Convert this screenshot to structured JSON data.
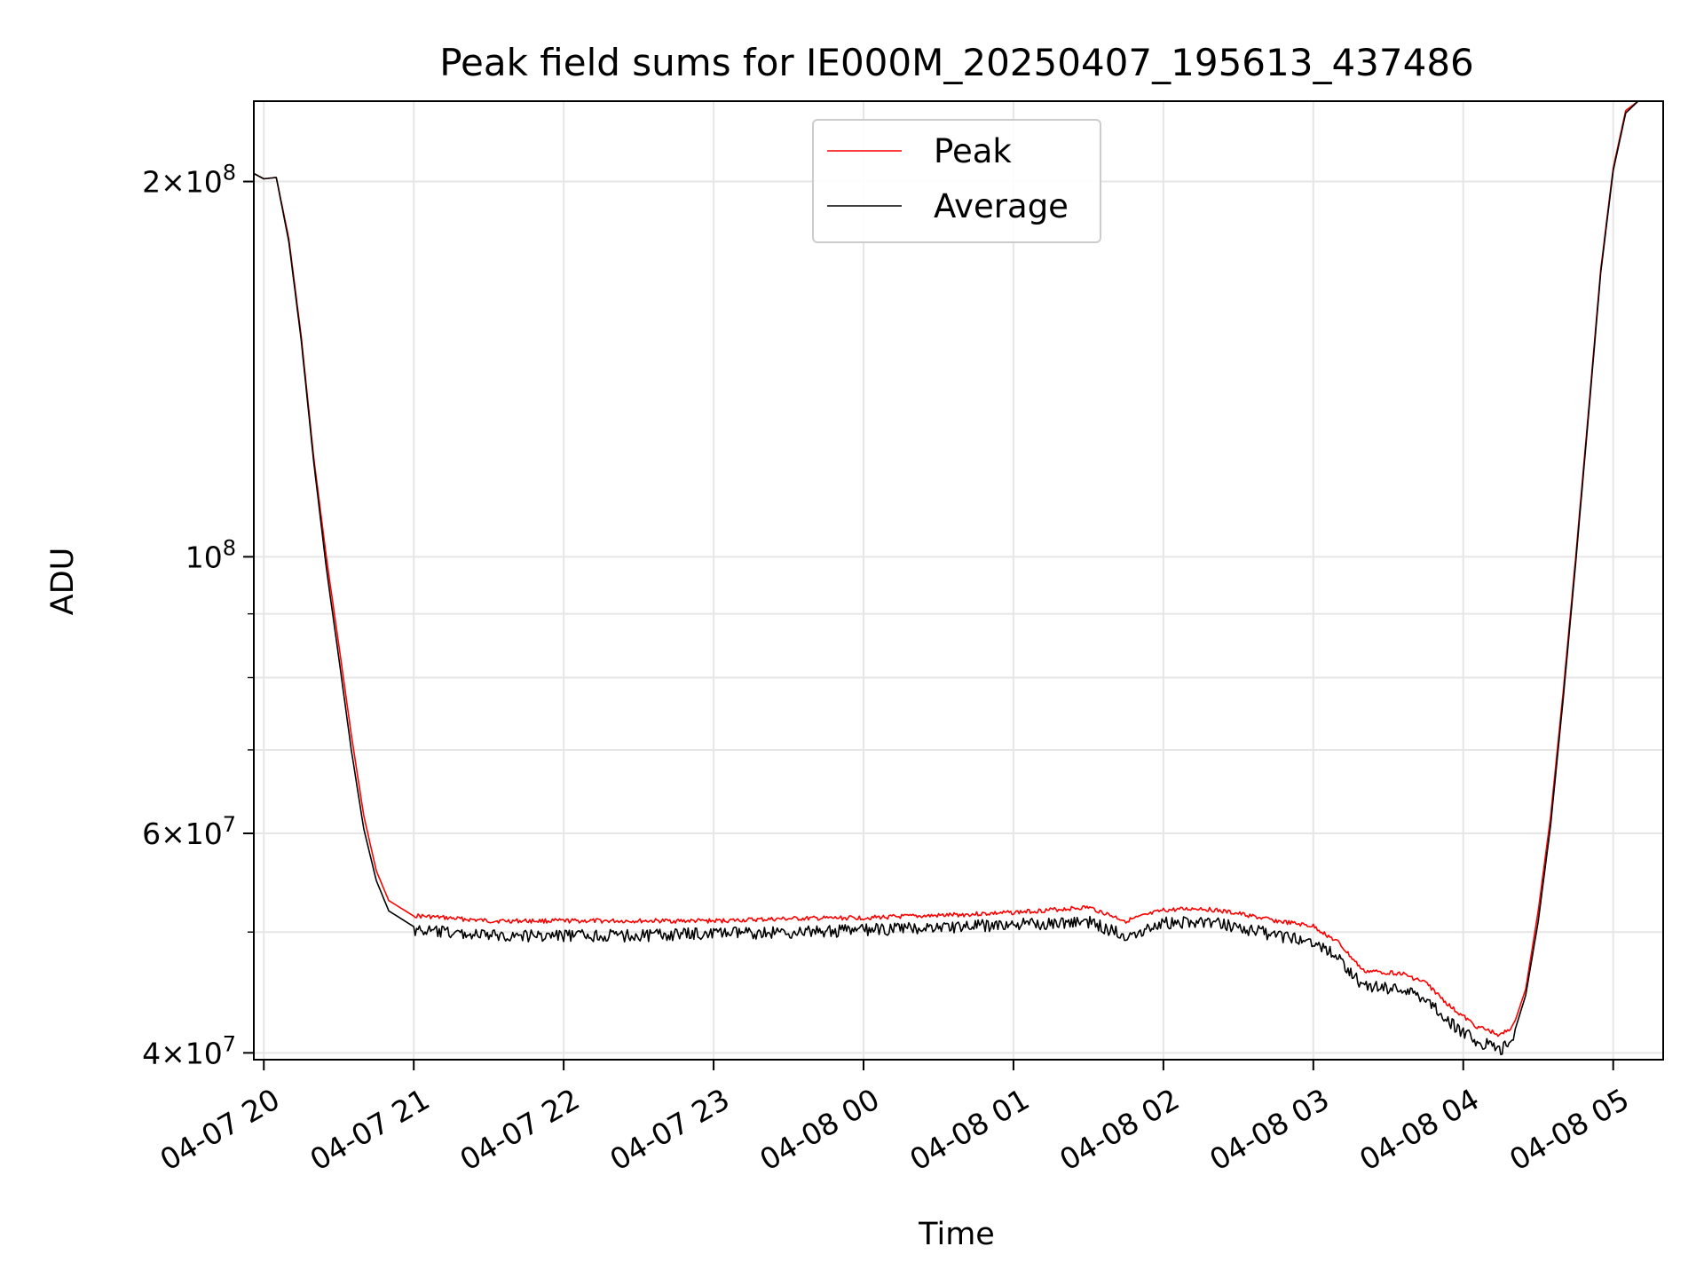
{
  "chart_data": {
    "type": "line",
    "title": "Peak field sums for IE000M_20250407_195613_437486",
    "xlabel": "Time",
    "ylabel": "ADU",
    "y_scale": "log",
    "grid": true,
    "legend_position": "upper center",
    "xlim": [
      "2025-04-07 19:56",
      "2025-04-08 05:20"
    ],
    "ylim": [
      39500000,
      232000000
    ],
    "x_ticks": [
      {
        "value": "2025-04-07 20:00",
        "label": "04-07 20"
      },
      {
        "value": "2025-04-07 21:00",
        "label": "04-07 21"
      },
      {
        "value": "2025-04-07 22:00",
        "label": "04-07 22"
      },
      {
        "value": "2025-04-07 23:00",
        "label": "04-07 23"
      },
      {
        "value": "2025-04-08 00:00",
        "label": "04-08 00"
      },
      {
        "value": "2025-04-08 01:00",
        "label": "04-08 01"
      },
      {
        "value": "2025-04-08 02:00",
        "label": "04-08 02"
      },
      {
        "value": "2025-04-08 03:00",
        "label": "04-08 03"
      },
      {
        "value": "2025-04-08 04:00",
        "label": "04-08 04"
      },
      {
        "value": "2025-04-08 05:00",
        "label": "04-08 05"
      }
    ],
    "y_ticks": [
      {
        "value": 40000000,
        "mant": "4",
        "exp": "7",
        "major": true
      },
      {
        "value": 50000000,
        "major": false
      },
      {
        "value": 60000000,
        "mant": "6",
        "exp": "7",
        "major": true
      },
      {
        "value": 70000000,
        "major": false
      },
      {
        "value": 80000000,
        "major": false
      },
      {
        "value": 90000000,
        "major": false
      },
      {
        "value": 100000000,
        "mant": "",
        "exp": "8",
        "major": true
      },
      {
        "value": 200000000,
        "mant": "2",
        "exp": "8",
        "major": true
      }
    ],
    "series": [
      {
        "name": "Peak",
        "color": "#ff0000",
        "points": [
          [
            "2025-04-07 19:56",
            203000000
          ],
          [
            "2025-04-07 20:00",
            201000000
          ],
          [
            "2025-04-07 20:05",
            201500000
          ],
          [
            "2025-04-07 20:10",
            180000000
          ],
          [
            "2025-04-07 20:15",
            150000000
          ],
          [
            "2025-04-07 20:20",
            120000000
          ],
          [
            "2025-04-07 20:25",
            100000000
          ],
          [
            "2025-04-07 20:30",
            85000000
          ],
          [
            "2025-04-07 20:35",
            72000000
          ],
          [
            "2025-04-07 20:40",
            62000000
          ],
          [
            "2025-04-07 20:45",
            56000000
          ],
          [
            "2025-04-07 20:50",
            53000000
          ],
          [
            "2025-04-07 21:00",
            51500000
          ],
          [
            "2025-04-07 21:30",
            51000000
          ],
          [
            "2025-04-07 22:00",
            51000000
          ],
          [
            "2025-04-07 22:30",
            51000000
          ],
          [
            "2025-04-07 23:00",
            51000000
          ],
          [
            "2025-04-07 23:30",
            51200000
          ],
          [
            "2025-04-08 00:00",
            51300000
          ],
          [
            "2025-04-08 00:30",
            51500000
          ],
          [
            "2025-04-08 01:00",
            51800000
          ],
          [
            "2025-04-08 01:30",
            52300000
          ],
          [
            "2025-04-08 01:45",
            51000000
          ],
          [
            "2025-04-08 02:00",
            52000000
          ],
          [
            "2025-04-08 02:15",
            52200000
          ],
          [
            "2025-04-08 02:30",
            51700000
          ],
          [
            "2025-04-08 02:45",
            51000000
          ],
          [
            "2025-04-08 03:00",
            50500000
          ],
          [
            "2025-04-08 03:10",
            49000000
          ],
          [
            "2025-04-08 03:20",
            46500000
          ],
          [
            "2025-04-08 03:35",
            46300000
          ],
          [
            "2025-04-08 03:45",
            45500000
          ],
          [
            "2025-04-08 03:55",
            43500000
          ],
          [
            "2025-04-08 04:05",
            42000000
          ],
          [
            "2025-04-08 04:15",
            41300000
          ],
          [
            "2025-04-08 04:20",
            42000000
          ],
          [
            "2025-04-08 04:25",
            45000000
          ],
          [
            "2025-04-08 04:30",
            52000000
          ],
          [
            "2025-04-08 04:35",
            62000000
          ],
          [
            "2025-04-08 04:40",
            78000000
          ],
          [
            "2025-04-08 04:45",
            100000000
          ],
          [
            "2025-04-08 04:50",
            130000000
          ],
          [
            "2025-04-08 04:55",
            170000000
          ],
          [
            "2025-04-08 05:00",
            205000000
          ],
          [
            "2025-04-08 05:05",
            228000000
          ],
          [
            "2025-04-08 05:10",
            232000000
          ]
        ]
      },
      {
        "name": "Average",
        "color": "#000000",
        "points": [
          [
            "2025-04-07 19:56",
            203000000
          ],
          [
            "2025-04-07 20:00",
            201000000
          ],
          [
            "2025-04-07 20:05",
            201500000
          ],
          [
            "2025-04-07 20:10",
            179000000
          ],
          [
            "2025-04-07 20:15",
            149000000
          ],
          [
            "2025-04-07 20:20",
            119000000
          ],
          [
            "2025-04-07 20:25",
            98000000
          ],
          [
            "2025-04-07 20:30",
            83000000
          ],
          [
            "2025-04-07 20:35",
            70000000
          ],
          [
            "2025-04-07 20:40",
            60500000
          ],
          [
            "2025-04-07 20:45",
            55000000
          ],
          [
            "2025-04-07 20:50",
            52000000
          ],
          [
            "2025-04-07 21:00",
            50500000
          ],
          [
            "2025-04-07 21:30",
            50000000
          ],
          [
            "2025-04-07 22:00",
            50000000
          ],
          [
            "2025-04-07 22:30",
            50000000
          ],
          [
            "2025-04-07 23:00",
            50200000
          ],
          [
            "2025-04-07 23:30",
            50300000
          ],
          [
            "2025-04-08 00:00",
            50500000
          ],
          [
            "2025-04-08 00:30",
            50800000
          ],
          [
            "2025-04-08 01:00",
            51000000
          ],
          [
            "2025-04-08 01:30",
            51300000
          ],
          [
            "2025-04-08 01:45",
            50000000
          ],
          [
            "2025-04-08 02:00",
            51200000
          ],
          [
            "2025-04-08 02:15",
            51300000
          ],
          [
            "2025-04-08 02:30",
            50800000
          ],
          [
            "2025-04-08 02:45",
            50000000
          ],
          [
            "2025-04-08 03:00",
            49500000
          ],
          [
            "2025-04-08 03:10",
            48000000
          ],
          [
            "2025-04-08 03:20",
            45500000
          ],
          [
            "2025-04-08 03:35",
            45300000
          ],
          [
            "2025-04-08 03:45",
            44500000
          ],
          [
            "2025-04-08 03:55",
            42500000
          ],
          [
            "2025-04-08 04:05",
            41200000
          ],
          [
            "2025-04-08 04:15",
            40500000
          ],
          [
            "2025-04-08 04:20",
            41300000
          ],
          [
            "2025-04-08 04:25",
            44500000
          ],
          [
            "2025-04-08 04:30",
            51000000
          ],
          [
            "2025-04-08 04:35",
            61000000
          ],
          [
            "2025-04-08 04:40",
            77000000
          ],
          [
            "2025-04-08 04:45",
            99000000
          ],
          [
            "2025-04-08 04:50",
            129000000
          ],
          [
            "2025-04-08 04:55",
            169000000
          ],
          [
            "2025-04-08 05:00",
            204000000
          ],
          [
            "2025-04-08 05:05",
            227000000
          ],
          [
            "2025-04-08 05:10",
            232000000
          ]
        ]
      }
    ]
  }
}
